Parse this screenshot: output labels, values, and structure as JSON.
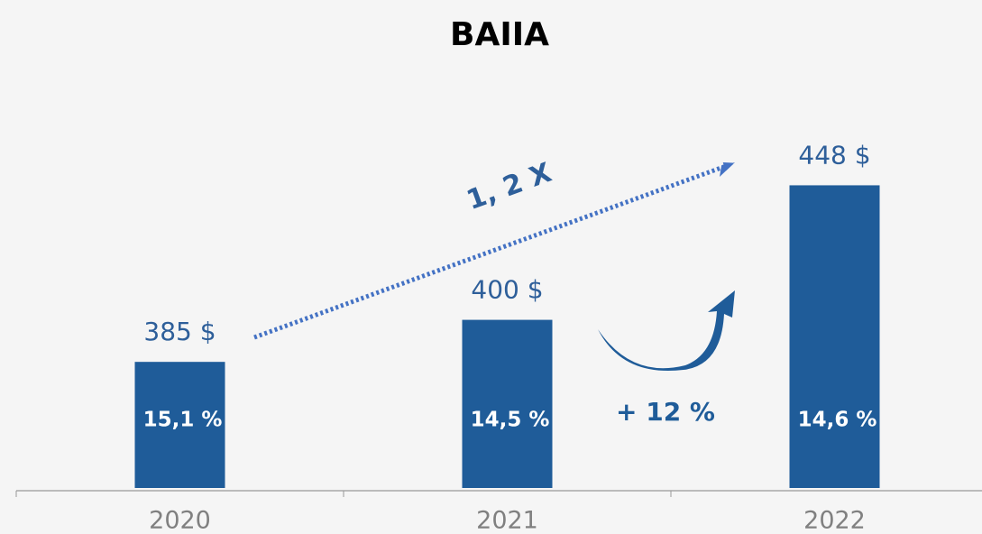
{
  "chart_data": {
    "type": "bar",
    "title": "BAIIA",
    "categories": [
      "2020",
      "2021",
      "2022"
    ],
    "values": [
      385,
      400,
      448
    ],
    "value_labels": [
      "385 $",
      "400 $",
      "448 $"
    ],
    "inner_labels": [
      "15,1 %",
      "14,5 %",
      "14,6 %"
    ],
    "color": "#1f5c99",
    "ylim": [
      340,
      480
    ],
    "annotations": [
      "1, 2 X",
      "+ 12 %"
    ]
  }
}
